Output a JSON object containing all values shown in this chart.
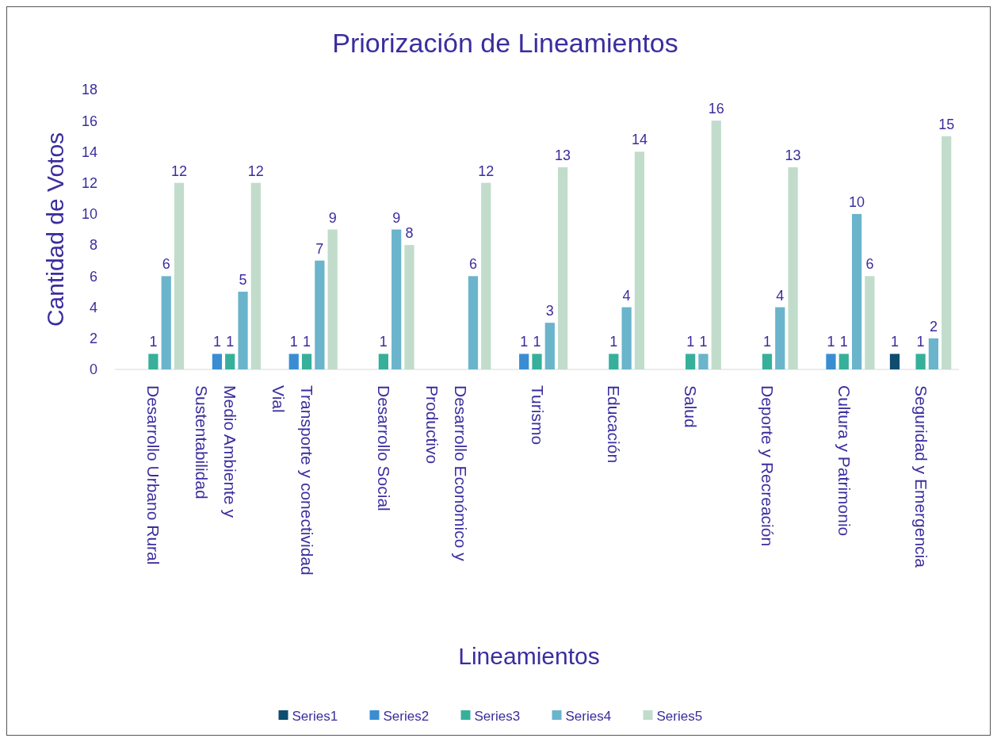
{
  "chart_data": {
    "type": "bar",
    "title": "Priorización de Lineamientos",
    "xlabel": "Lineamientos",
    "ylabel": "Cantidad de Votos",
    "categories": [
      "Desarrollo Urbano Rural",
      "Medio Ambiente y Sustentabilidad",
      "Transporte y conectividad Vial",
      "Desarrollo Social",
      "Desarrollo Económico y Productivo",
      "Turismo",
      "Educación",
      "Salud",
      "Deporte y Recreación",
      "Cultura y Patrimonio",
      "Seguridad y Emergencia"
    ],
    "series": [
      {
        "name": "Series1",
        "color": "#0f4c6e",
        "values": [
          null,
          null,
          null,
          null,
          null,
          null,
          null,
          null,
          null,
          null,
          1
        ]
      },
      {
        "name": "Series2",
        "color": "#3a8dd2",
        "values": [
          null,
          1,
          1,
          null,
          null,
          1,
          null,
          null,
          null,
          1,
          null
        ]
      },
      {
        "name": "Series3",
        "color": "#36b09a",
        "values": [
          1,
          1,
          1,
          1,
          null,
          1,
          1,
          1,
          1,
          1,
          1
        ]
      },
      {
        "name": "Series4",
        "color": "#6ab4cc",
        "values": [
          6,
          5,
          7,
          9,
          6,
          3,
          4,
          1,
          4,
          10,
          2
        ]
      },
      {
        "name": "Series5",
        "color": "#c1dccb",
        "values": [
          12,
          12,
          9,
          8,
          12,
          13,
          14,
          16,
          13,
          6,
          15
        ]
      }
    ],
    "ylim": [
      0,
      18
    ],
    "yticks": [
      0,
      2,
      4,
      6,
      8,
      10,
      12,
      14,
      16,
      18
    ],
    "grid": false,
    "legend": "bottom",
    "data_labels": true
  }
}
